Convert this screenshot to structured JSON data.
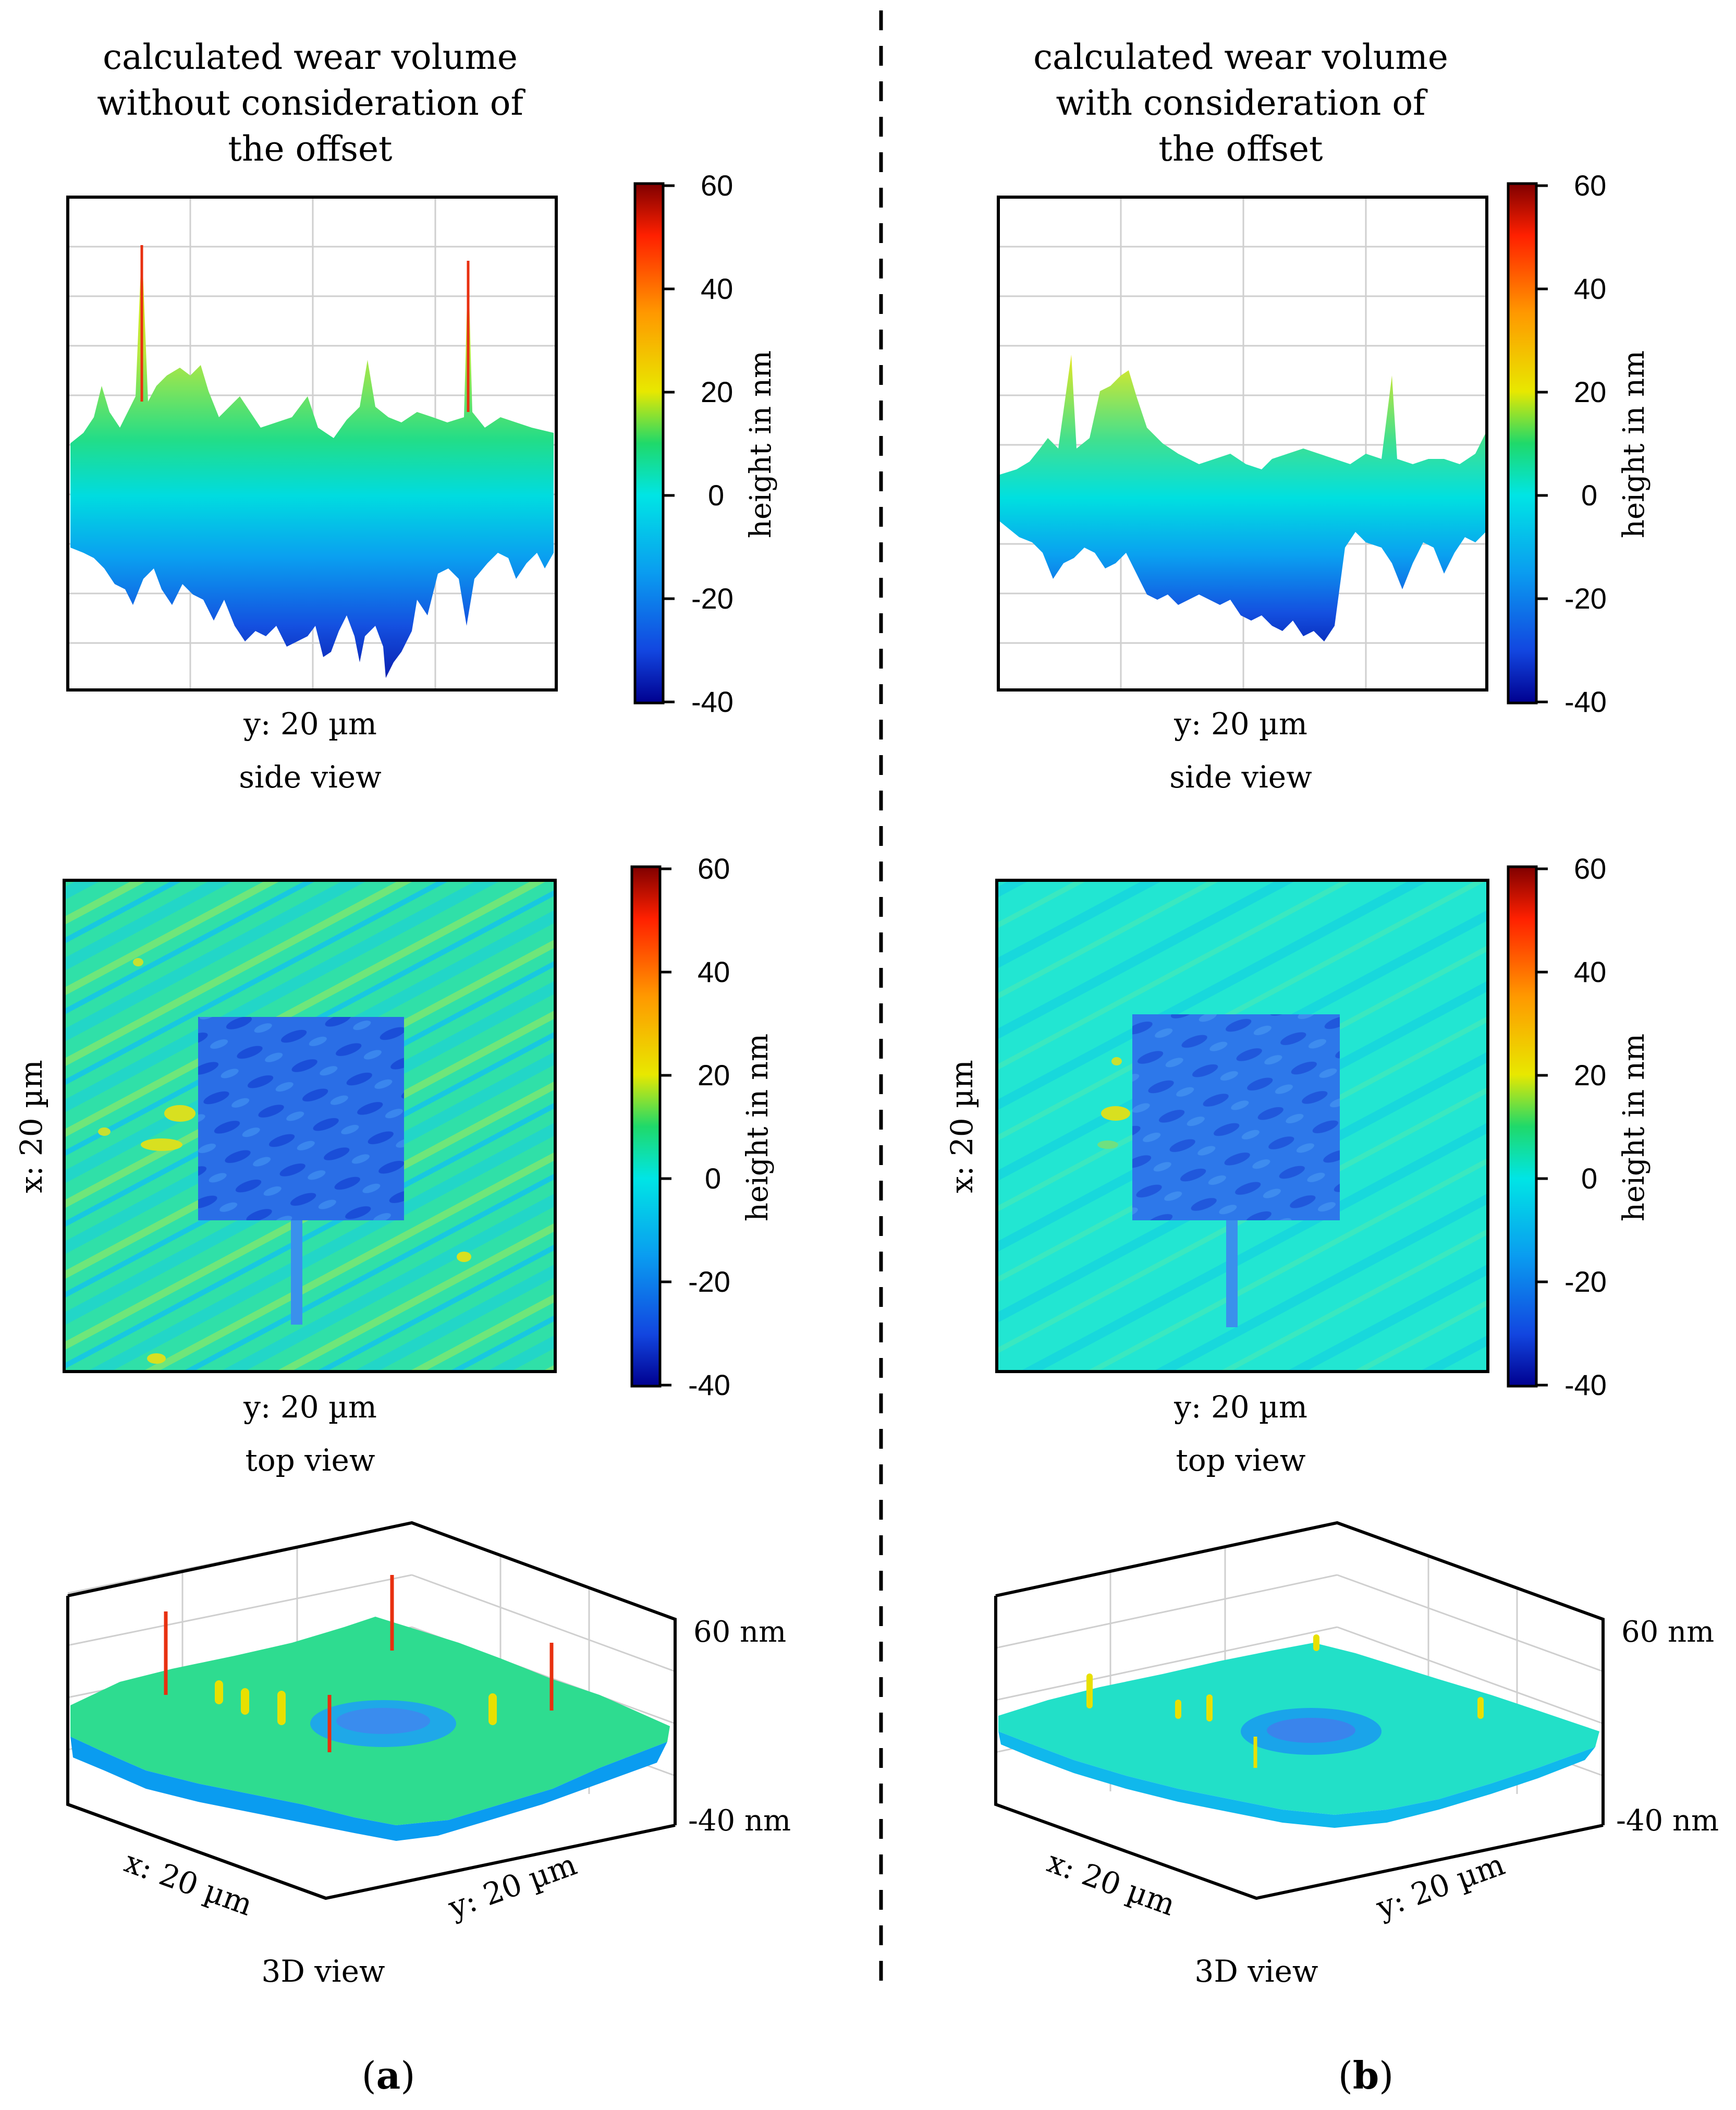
{
  "figure": {
    "panels": [
      {
        "id": "a",
        "title_lines": [
          "calculated wear volume",
          "without consideration of",
          "the offset"
        ],
        "side_view": {
          "x_label": "y: 20 µm",
          "view_label": "side view"
        },
        "top_view": {
          "x_label": "y: 20 µm",
          "y_label": "x: 20 µm",
          "view_label": "top view"
        },
        "view_3d": {
          "x_label": "x: 20 µm",
          "y_label": "y: 20 µm",
          "z_max_label": "60 nm",
          "z_min_label": "-40 nm",
          "view_label": "3D view"
        },
        "panel_label": {
          "open": "(",
          "letter": "a",
          "close": ")"
        }
      },
      {
        "id": "b",
        "title_lines": [
          "calculated wear volume",
          "with consideration of",
          "the offset"
        ],
        "side_view": {
          "x_label": "y: 20 µm",
          "view_label": "side view"
        },
        "top_view": {
          "x_label": "y: 20 µm",
          "y_label": "x: 20 µm",
          "view_label": "top view"
        },
        "view_3d": {
          "x_label": "x: 20 µm",
          "y_label": "y: 20 µm",
          "z_max_label": "60 nm",
          "z_min_label": "-40 nm",
          "view_label": "3D view"
        },
        "panel_label": {
          "open": "(",
          "letter": "b",
          "close": ")"
        }
      }
    ],
    "colorbar": {
      "label": "height in nm",
      "ticks": [
        "60",
        "40",
        "20",
        "0",
        "-20",
        "-40"
      ],
      "colors": [
        "#7f0000",
        "#ff2000",
        "#ff9900",
        "#e8e800",
        "#1fd96a",
        "#00e5e5",
        "#0a9cf0",
        "#1246e0",
        "#00008f"
      ]
    }
  }
}
